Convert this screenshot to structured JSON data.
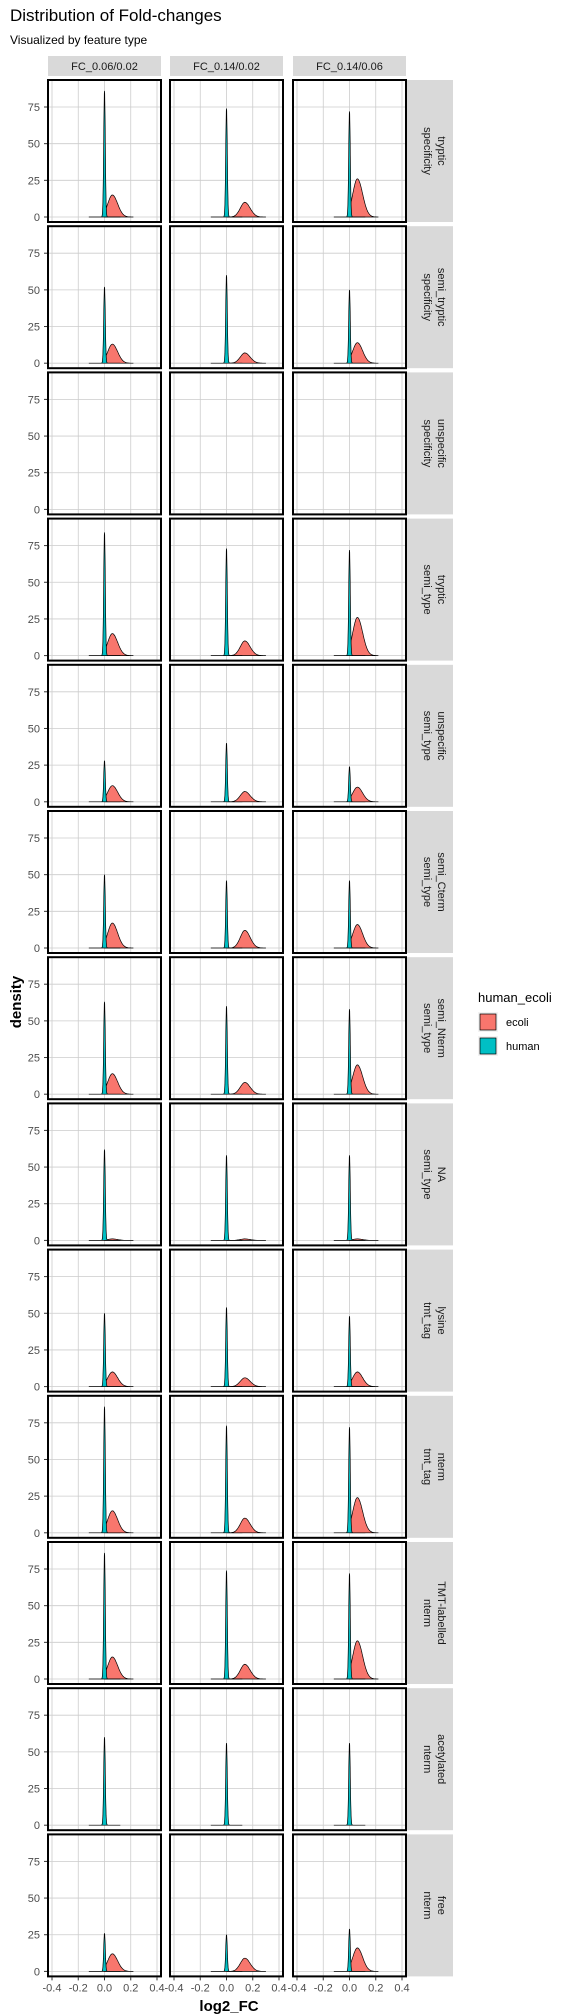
{
  "title": "Distribution of Fold-changes",
  "subtitle": "Visualized by feature type",
  "chart_data": {
    "type": "area",
    "kind": "faceted density plot",
    "xlabel": "log2_FC",
    "ylabel": "density",
    "xlim": [
      -0.4,
      0.4
    ],
    "ylim": [
      0,
      90
    ],
    "x_ticks": [
      "-0.4",
      "-0.2",
      "0.0",
      "0.2",
      "0.4"
    ],
    "y_ticks": [
      "0",
      "25",
      "50",
      "75"
    ],
    "grid": true,
    "legend": {
      "title": "human_ecoli",
      "placement": "right",
      "entries": [
        {
          "label": "ecoli",
          "color": "#f8766d"
        },
        {
          "label": "human",
          "color": "#00bfc4"
        }
      ]
    },
    "columns": [
      "FC_0.06/0.02",
      "FC_0.14/0.02",
      "FC_0.14/0.06"
    ],
    "expected_ecoli_log2fc": [
      0.06,
      0.14,
      0.06
    ],
    "rows": [
      {
        "labels": [
          "specificity",
          "tryptic"
        ],
        "human_peak": [
          86,
          74,
          72
        ],
        "ecoli_peak": [
          15,
          10,
          26
        ],
        "empty": false
      },
      {
        "labels": [
          "specificity",
          "semi_tryptic"
        ],
        "human_peak": [
          52,
          60,
          50
        ],
        "ecoli_peak": [
          13,
          7,
          14
        ],
        "empty": false
      },
      {
        "labels": [
          "specificity",
          "unspecific"
        ],
        "human_peak": [
          0,
          0,
          0
        ],
        "ecoli_peak": [
          0,
          0,
          0
        ],
        "empty": true
      },
      {
        "labels": [
          "semi_type",
          "tryptic"
        ],
        "human_peak": [
          84,
          73,
          72
        ],
        "ecoli_peak": [
          15,
          10,
          26
        ],
        "empty": false
      },
      {
        "labels": [
          "semi_type",
          "unspecific"
        ],
        "human_peak": [
          28,
          40,
          24
        ],
        "ecoli_peak": [
          11,
          7,
          10
        ],
        "empty": false
      },
      {
        "labels": [
          "semi_type",
          "semi_Cterm"
        ],
        "human_peak": [
          50,
          46,
          46
        ],
        "ecoli_peak": [
          17,
          12,
          16
        ],
        "empty": false
      },
      {
        "labels": [
          "semi_type",
          "semi_Nterm"
        ],
        "human_peak": [
          63,
          60,
          58
        ],
        "ecoli_peak": [
          14,
          8,
          20
        ],
        "empty": false
      },
      {
        "labels": [
          "semi_type",
          "NA"
        ],
        "human_peak": [
          62,
          58,
          58
        ],
        "ecoli_peak": [
          1,
          1,
          1
        ],
        "empty": false
      },
      {
        "labels": [
          "tmt_tag",
          "lysine"
        ],
        "human_peak": [
          50,
          54,
          48
        ],
        "ecoli_peak": [
          10,
          6,
          10
        ],
        "empty": false
      },
      {
        "labels": [
          "tmt_tag",
          "nterm"
        ],
        "human_peak": [
          86,
          73,
          72
        ],
        "ecoli_peak": [
          15,
          10,
          24
        ],
        "empty": false
      },
      {
        "labels": [
          "nterm",
          "TMT-labelled"
        ],
        "human_peak": [
          86,
          74,
          72
        ],
        "ecoli_peak": [
          15,
          10,
          26
        ],
        "empty": false
      },
      {
        "labels": [
          "nterm",
          "acetylated"
        ],
        "human_peak": [
          60,
          56,
          56
        ],
        "ecoli_peak": [
          0,
          0,
          0
        ],
        "empty": false
      },
      {
        "labels": [
          "nterm",
          "free"
        ],
        "human_peak": [
          26,
          25,
          29
        ],
        "ecoli_peak": [
          12,
          9,
          16
        ],
        "empty": false
      }
    ]
  }
}
